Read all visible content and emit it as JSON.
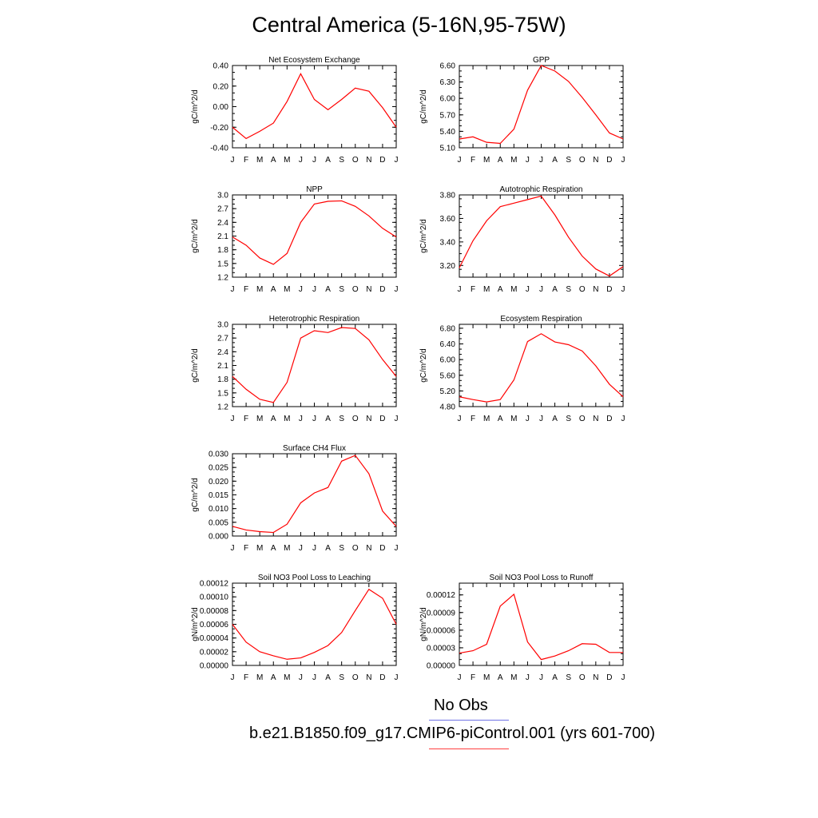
{
  "title": "Central America (5-16N,95-75W)",
  "legend": {
    "obs_label": "No Obs",
    "model_label": "b.e21.B1850.f09_g17.CMIP6-piControl.001 (yrs 601-700)",
    "obs_color": "#6f73e6",
    "model_color": "#ff4040"
  },
  "chart_data": [
    {
      "type": "line",
      "title": "Net Ecosystem Exchange",
      "ylabel": "gC/m^2/d",
      "x": [
        "J",
        "F",
        "M",
        "A",
        "M",
        "J",
        "J",
        "A",
        "S",
        "O",
        "N",
        "D",
        "J"
      ],
      "ylim": [
        -0.4,
        0.4
      ],
      "yticks": [
        "-0.40",
        "-0.20",
        "0.00",
        "0.20",
        "0.40"
      ],
      "series": [
        {
          "name": "b.e21.B1850.f09_g17.CMIP6-piControl.001 (yrs 601-700)",
          "color": "#ff0000",
          "values": [
            -0.2,
            -0.31,
            -0.24,
            -0.16,
            0.05,
            0.32,
            0.07,
            -0.03,
            0.07,
            0.18,
            0.15,
            -0.01,
            -0.2
          ]
        }
      ]
    },
    {
      "type": "line",
      "title": "GPP",
      "ylabel": "gC/m^2/d",
      "x": [
        "J",
        "F",
        "M",
        "A",
        "M",
        "J",
        "J",
        "A",
        "S",
        "O",
        "N",
        "D",
        "J"
      ],
      "ylim": [
        5.1,
        6.6
      ],
      "yticks": [
        "5.10",
        "5.40",
        "5.70",
        "6.00",
        "6.30",
        "6.60"
      ],
      "series": [
        {
          "name": "b.e21.B1850.f09_g17.CMIP6-piControl.001 (yrs 601-700)",
          "color": "#ff0000",
          "values": [
            5.26,
            5.3,
            5.2,
            5.18,
            5.44,
            6.15,
            6.6,
            6.5,
            6.31,
            6.02,
            5.7,
            5.37,
            5.26
          ]
        }
      ]
    },
    {
      "type": "line",
      "title": "NPP",
      "ylabel": "gC/m^2/d",
      "x": [
        "J",
        "F",
        "M",
        "A",
        "M",
        "J",
        "J",
        "A",
        "S",
        "O",
        "N",
        "D",
        "J"
      ],
      "ylim": [
        1.2,
        3.0
      ],
      "yticks": [
        "1.2",
        "1.5",
        "1.8",
        "2.1",
        "2.4",
        "2.7",
        "3.0"
      ],
      "series": [
        {
          "name": "b.e21.B1850.f09_g17.CMIP6-piControl.001 (yrs 601-700)",
          "color": "#ff0000",
          "values": [
            2.08,
            1.9,
            1.62,
            1.48,
            1.72,
            2.4,
            2.8,
            2.86,
            2.87,
            2.75,
            2.54,
            2.27,
            2.08
          ]
        }
      ]
    },
    {
      "type": "line",
      "title": "Autotrophic Respiration",
      "ylabel": "gC/m^2/d",
      "x": [
        "J",
        "F",
        "M",
        "A",
        "M",
        "J",
        "J",
        "A",
        "S",
        "O",
        "N",
        "D",
        "J"
      ],
      "ylim": [
        3.1,
        3.8
      ],
      "yticks": [
        "3.20",
        "3.40",
        "3.60",
        "3.80"
      ],
      "series": [
        {
          "name": "b.e21.B1850.f09_g17.CMIP6-piControl.001 (yrs 601-700)",
          "color": "#ff0000",
          "values": [
            3.18,
            3.41,
            3.58,
            3.7,
            3.73,
            3.76,
            3.79,
            3.63,
            3.44,
            3.28,
            3.17,
            3.11,
            3.19
          ]
        }
      ]
    },
    {
      "type": "line",
      "title": "Heterotrophic Respiration",
      "ylabel": "gC/m^2/d",
      "x": [
        "J",
        "F",
        "M",
        "A",
        "M",
        "J",
        "J",
        "A",
        "S",
        "O",
        "N",
        "D",
        "J"
      ],
      "ylim": [
        1.2,
        3.0
      ],
      "yticks": [
        "1.2",
        "1.5",
        "1.8",
        "2.1",
        "2.4",
        "2.7",
        "3.0"
      ],
      "series": [
        {
          "name": "b.e21.B1850.f09_g17.CMIP6-piControl.001 (yrs 601-700)",
          "color": "#ff0000",
          "values": [
            1.86,
            1.58,
            1.36,
            1.29,
            1.73,
            2.7,
            2.86,
            2.82,
            2.93,
            2.91,
            2.66,
            2.23,
            1.86
          ]
        }
      ]
    },
    {
      "type": "line",
      "title": "Ecosystem Respiration",
      "ylabel": "gC/m^2/d",
      "x": [
        "J",
        "F",
        "M",
        "A",
        "M",
        "J",
        "J",
        "A",
        "S",
        "O",
        "N",
        "D",
        "J"
      ],
      "ylim": [
        4.8,
        6.9
      ],
      "yticks": [
        "4.80",
        "5.20",
        "5.60",
        "6.00",
        "6.40",
        "6.80"
      ],
      "series": [
        {
          "name": "b.e21.B1850.f09_g17.CMIP6-piControl.001 (yrs 601-700)",
          "color": "#ff0000",
          "values": [
            5.05,
            4.98,
            4.92,
            4.98,
            5.48,
            6.46,
            6.66,
            6.45,
            6.38,
            6.22,
            5.84,
            5.37,
            5.05
          ]
        }
      ]
    },
    {
      "type": "line",
      "title": "Surface CH4 Flux",
      "ylabel": "gC/m^2/d",
      "x": [
        "J",
        "F",
        "M",
        "A",
        "M",
        "J",
        "J",
        "A",
        "S",
        "O",
        "N",
        "D",
        "J"
      ],
      "ylim": [
        0.0,
        0.03
      ],
      "yticks": [
        "0.000",
        "0.005",
        "0.010",
        "0.015",
        "0.020",
        "0.025",
        "0.030"
      ],
      "series": [
        {
          "name": "b.e21.B1850.f09_g17.CMIP6-piControl.001 (yrs 601-700)",
          "color": "#ff0000",
          "values": [
            0.0035,
            0.0022,
            0.0016,
            0.0013,
            0.0043,
            0.0121,
            0.0157,
            0.0177,
            0.0273,
            0.0294,
            0.0227,
            0.0091,
            0.0035
          ]
        }
      ]
    },
    {
      "type": "line",
      "title": "Soil NO3 Pool Loss to Leaching",
      "ylabel": "gN/m^2/d",
      "x": [
        "J",
        "F",
        "M",
        "A",
        "M",
        "J",
        "J",
        "A",
        "S",
        "O",
        "N",
        "D",
        "J"
      ],
      "ylim": [
        0.0,
        0.00012
      ],
      "yticks": [
        "0.00000",
        "0.00002",
        "0.00004",
        "0.00006",
        "0.00008",
        "0.00010",
        "0.00012"
      ],
      "series": [
        {
          "name": "b.e21.B1850.f09_g17.CMIP6-piControl.001 (yrs 601-700)",
          "color": "#ff0000",
          "values": [
            6e-05,
            3.4e-05,
            2e-05,
            1.4e-05,
            9e-06,
            1.1e-05,
            1.9e-05,
            2.9e-05,
            4.8e-05,
            8e-05,
            0.000111,
            9.8e-05,
            6e-05
          ]
        }
      ]
    },
    {
      "type": "line",
      "title": "Soil NO3 Pool Loss to Runoff",
      "ylabel": "gN/m^2/d",
      "x": [
        "J",
        "F",
        "M",
        "A",
        "M",
        "J",
        "J",
        "A",
        "S",
        "O",
        "N",
        "D",
        "J"
      ],
      "ylim": [
        0.0,
        0.00014
      ],
      "yticks": [
        "0.00000",
        "0.00003",
        "0.00006",
        "0.00009",
        "0.00012"
      ],
      "series": [
        {
          "name": "b.e21.B1850.f09_g17.CMIP6-piControl.001 (yrs 601-700)",
          "color": "#ff0000",
          "values": [
            2.1e-05,
            2.5e-05,
            3.6e-05,
            0.000101,
            0.000121,
            4e-05,
            1e-05,
            1.6e-05,
            2.5e-05,
            3.7e-05,
            3.6e-05,
            2.2e-05,
            2.2e-05
          ]
        }
      ]
    }
  ]
}
